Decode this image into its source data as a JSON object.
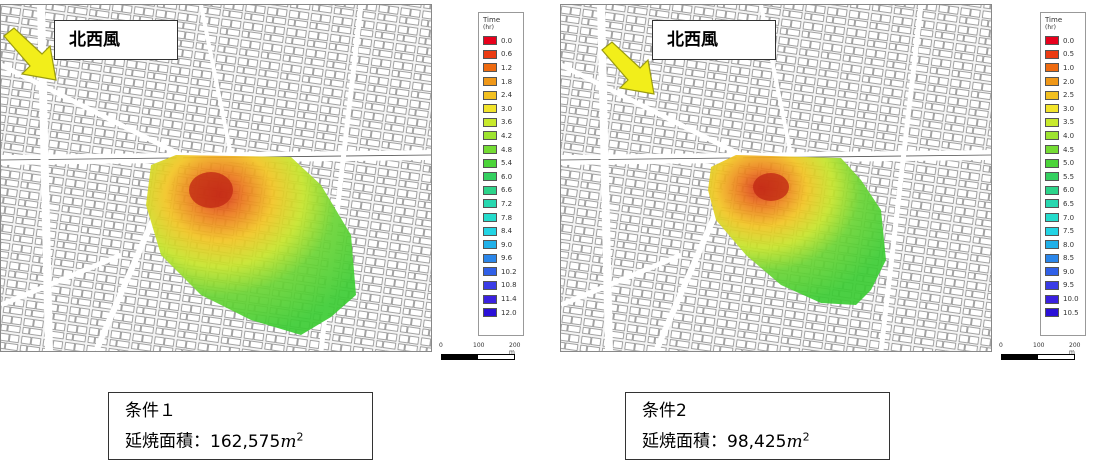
{
  "panels": [
    {
      "wind_label": "北西風",
      "legend": {
        "title": "Time",
        "unit": "(hr)",
        "items": [
          {
            "label": "0.0",
            "color": "#e8001c"
          },
          {
            "label": "0.6",
            "color": "#ec3b12"
          },
          {
            "label": "1.2",
            "color": "#ee6a10"
          },
          {
            "label": "1.8",
            "color": "#f09818"
          },
          {
            "label": "2.4",
            "color": "#f2c020"
          },
          {
            "label": "3.0",
            "color": "#f2e42a"
          },
          {
            "label": "3.6",
            "color": "#c8ea2c"
          },
          {
            "label": "4.2",
            "color": "#9ee430"
          },
          {
            "label": "4.8",
            "color": "#74dc34"
          },
          {
            "label": "5.4",
            "color": "#4cd43a"
          },
          {
            "label": "6.0",
            "color": "#34d060"
          },
          {
            "label": "6.6",
            "color": "#2cd48a"
          },
          {
            "label": "7.2",
            "color": "#28d8b0"
          },
          {
            "label": "7.8",
            "color": "#24dccc"
          },
          {
            "label": "8.4",
            "color": "#22d4e4"
          },
          {
            "label": "9.0",
            "color": "#20b0e8"
          },
          {
            "label": "9.6",
            "color": "#2a86ea"
          },
          {
            "label": "10.2",
            "color": "#3060e8"
          },
          {
            "label": "10.8",
            "color": "#3a3ce6"
          },
          {
            "label": "11.4",
            "color": "#3a20e0"
          },
          {
            "label": "12.0",
            "color": "#2a10d8"
          }
        ]
      },
      "scale": {
        "t0": "0",
        "t1": "100",
        "t2": "200 m"
      },
      "result": {
        "condition": "条件１",
        "area_label": "延焼面積：",
        "area_value": "162,575",
        "area_unit": "m",
        "area_exp": "2"
      }
    },
    {
      "wind_label": "北西風",
      "legend": {
        "title": "Time",
        "unit": "(hr)",
        "items": [
          {
            "label": "0.0",
            "color": "#e8001c"
          },
          {
            "label": "0.5",
            "color": "#ec3b12"
          },
          {
            "label": "1.0",
            "color": "#ee6a10"
          },
          {
            "label": "2.0",
            "color": "#f09818"
          },
          {
            "label": "2.5",
            "color": "#f2c020"
          },
          {
            "label": "3.0",
            "color": "#f2e42a"
          },
          {
            "label": "3.5",
            "color": "#c8ea2c"
          },
          {
            "label": "4.0",
            "color": "#9ee430"
          },
          {
            "label": "4.5",
            "color": "#74dc34"
          },
          {
            "label": "5.0",
            "color": "#4cd43a"
          },
          {
            "label": "5.5",
            "color": "#34d060"
          },
          {
            "label": "6.0",
            "color": "#2cd48a"
          },
          {
            "label": "6.5",
            "color": "#28d8b0"
          },
          {
            "label": "7.0",
            "color": "#24dccc"
          },
          {
            "label": "7.5",
            "color": "#22d4e4"
          },
          {
            "label": "8.0",
            "color": "#20b0e8"
          },
          {
            "label": "8.5",
            "color": "#2a86ea"
          },
          {
            "label": "9.0",
            "color": "#3060e8"
          },
          {
            "label": "9.5",
            "color": "#3a3ce6"
          },
          {
            "label": "10.0",
            "color": "#3a20e0"
          },
          {
            "label": "10.5",
            "color": "#2a10d8"
          }
        ]
      },
      "scale": {
        "t0": "0",
        "t1": "100",
        "t2": "200 m"
      },
      "result": {
        "condition": "条件2",
        "area_label": "延焼面積：",
        "area_value": "98,425",
        "area_unit": "m",
        "area_exp": "2"
      }
    }
  ],
  "colors": {
    "arrow": "#f2ee1a",
    "fire_center": "#d83a18",
    "fire_mid": "#f0c020",
    "fire_edge": "#3cd030",
    "roads": "#ffffff",
    "blocks": "#d8d8d8"
  }
}
